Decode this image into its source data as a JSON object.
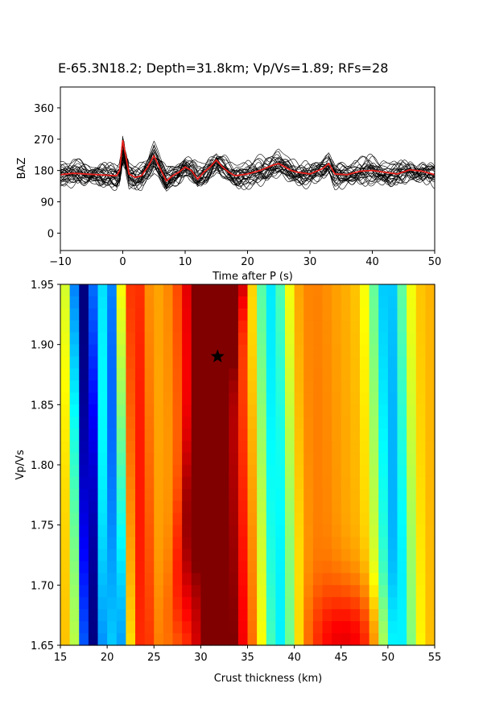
{
  "chart_data": [
    {
      "type": "line",
      "title": "E-65.3N18.2; Depth=31.8km; Vp/Vs=1.89; RFs=28",
      "xlabel": "Time after P (s)",
      "ylabel": "BAZ",
      "xlim": [
        -10,
        50
      ],
      "ylim": [
        -50,
        420
      ],
      "xticks": [
        -10,
        0,
        10,
        20,
        30,
        40,
        50
      ],
      "yticks": [
        0,
        90,
        180,
        270,
        360
      ],
      "xtick_labels": [
        "−10",
        "0",
        "10",
        "20",
        "30",
        "40",
        "50"
      ],
      "ytick_labels": [
        "0",
        "90",
        "180",
        "270",
        "360"
      ],
      "trace_count": 28,
      "trace_color": "#000000",
      "stack_color": "#e8211d",
      "stack": {
        "name": "stack",
        "x": [
          -10,
          -8,
          -6,
          -4,
          -2,
          -1,
          -0.5,
          0,
          0.5,
          1,
          2,
          3,
          4,
          5,
          6,
          7,
          8,
          9,
          10,
          11,
          12,
          13,
          14,
          15,
          16,
          17,
          18,
          20,
          22,
          24,
          25,
          26,
          27,
          28,
          30,
          32,
          33,
          34,
          36,
          38,
          40,
          42,
          44,
          46,
          48,
          50
        ],
        "y": [
          168,
          172,
          170,
          168,
          166,
          165,
          180,
          267,
          220,
          170,
          160,
          165,
          190,
          222,
          185,
          150,
          165,
          175,
          190,
          180,
          155,
          175,
          190,
          210,
          190,
          175,
          165,
          170,
          180,
          195,
          200,
          190,
          180,
          175,
          170,
          185,
          200,
          170,
          168,
          178,
          180,
          175,
          170,
          182,
          178,
          168
        ]
      }
    },
    {
      "type": "heatmap",
      "xlabel": "Crust thickness (km)",
      "ylabel": "Vp/Vs",
      "xlim": [
        15,
        55
      ],
      "ylim": [
        1.65,
        1.95
      ],
      "xticks": [
        15,
        20,
        25,
        30,
        35,
        40,
        45,
        50,
        55
      ],
      "yticks": [
        1.65,
        1.7,
        1.75,
        1.8,
        1.85,
        1.9,
        1.95
      ],
      "xtick_labels": [
        "15",
        "20",
        "25",
        "30",
        "35",
        "40",
        "45",
        "50",
        "55"
      ],
      "ytick_labels": [
        "1.65",
        "1.70",
        "1.75",
        "1.80",
        "1.85",
        "1.90",
        "1.95"
      ],
      "colormap": "jet",
      "grid_shape": [
        30,
        40
      ],
      "marker": {
        "x": 31.8,
        "y": 1.89,
        "symbol": "star",
        "color": "#000000"
      }
    }
  ]
}
